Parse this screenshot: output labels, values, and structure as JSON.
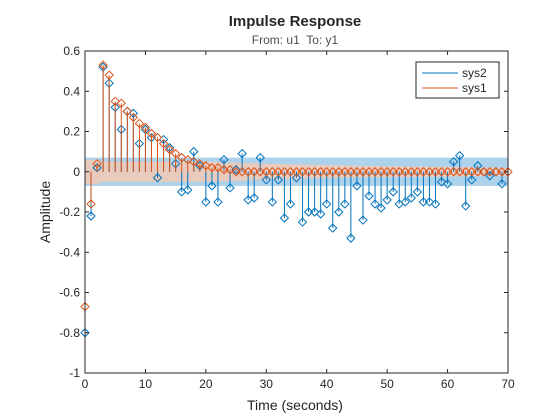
{
  "chart_data": {
    "type": "stem",
    "title": "Impulse Response",
    "subtitle": "From: u1  To: y1",
    "xlabel": "Time (seconds)",
    "ylabel": "Amplitude",
    "xlim": [
      0,
      70
    ],
    "ylim": [
      -1,
      0.6
    ],
    "xticks": [
      0,
      10,
      20,
      30,
      40,
      50,
      60,
      70
    ],
    "yticks": [
      -1,
      -0.8,
      -0.6,
      -0.4,
      -0.2,
      0,
      0.2,
      0.4,
      0.6
    ],
    "xtick_labels": [
      "0",
      "10",
      "20",
      "30",
      "40",
      "50",
      "60",
      "70"
    ],
    "ytick_labels": [
      "-1",
      "-0.8",
      "-0.6",
      "-0.4",
      "-0.2",
      "0",
      "0.2",
      "0.4",
      "0.6"
    ],
    "grid": false,
    "legend_position": "top-right",
    "series": [
      {
        "name": "sys2",
        "color": "#0072BD",
        "marker": "diamond",
        "style": "stem",
        "x": [
          0,
          1,
          2,
          3,
          4,
          5,
          6,
          7,
          8,
          9,
          10,
          11,
          12,
          13,
          14,
          15,
          16,
          17,
          18,
          19,
          20,
          21,
          22,
          23,
          24,
          25,
          26,
          27,
          28,
          29,
          30,
          31,
          32,
          33,
          34,
          35,
          36,
          37,
          38,
          39,
          40,
          41,
          42,
          43,
          44,
          45,
          46,
          47,
          48,
          49,
          50,
          51,
          52,
          53,
          54,
          55,
          56,
          57,
          58,
          59,
          60,
          61,
          62,
          63,
          64,
          65,
          66,
          67,
          68,
          69
        ],
        "y": [
          -0.8,
          -0.22,
          0.02,
          0.52,
          0.44,
          0.32,
          0.21,
          0.3,
          0.29,
          0.14,
          0.21,
          0.17,
          -0.03,
          0.16,
          0.12,
          0.04,
          -0.1,
          -0.09,
          0.1,
          0.03,
          -0.15,
          -0.07,
          -0.15,
          0.06,
          -0.08,
          0.01,
          0.09,
          -0.14,
          -0.13,
          0.07,
          -0.04,
          -0.15,
          -0.04,
          -0.23,
          -0.16,
          -0.03,
          -0.25,
          -0.2,
          -0.2,
          -0.21,
          -0.16,
          -0.28,
          -0.2,
          -0.16,
          -0.33,
          -0.07,
          -0.24,
          -0.12,
          -0.16,
          -0.18,
          -0.14,
          -0.1,
          -0.16,
          -0.15,
          -0.13,
          -0.1,
          -0.15,
          -0.15,
          -0.16,
          -0.05,
          -0.06,
          0.05,
          0.08,
          -0.17,
          -0.04,
          0.03,
          0.0,
          -0.02,
          0.0,
          -0.06
        ]
      },
      {
        "name": "sys1",
        "color": "#D95319",
        "marker": "diamond",
        "style": "stem",
        "x": [
          0,
          1,
          2,
          3,
          4,
          5,
          6,
          7,
          8,
          9,
          10,
          11,
          12,
          13,
          14,
          15,
          16,
          17,
          18,
          19,
          20,
          21,
          22,
          23,
          24,
          25,
          26,
          27,
          28,
          29,
          30,
          31,
          32,
          33,
          34,
          35,
          36,
          37,
          38,
          39,
          40,
          41,
          42,
          43,
          44,
          45,
          46,
          47,
          48,
          49,
          50,
          51,
          52,
          53,
          54,
          55,
          56,
          57,
          58,
          59,
          60,
          61,
          62,
          63,
          64,
          65,
          66,
          67,
          68,
          69,
          70
        ],
        "y": [
          -0.67,
          -0.16,
          0.04,
          0.53,
          0.48,
          0.35,
          0.34,
          0.3,
          0.27,
          0.24,
          0.22,
          0.19,
          0.17,
          0.14,
          0.11,
          0.09,
          0.07,
          0.06,
          0.05,
          0.04,
          0.03,
          0.02,
          0.02,
          0.01,
          0.01,
          0.0,
          0.0,
          0.0,
          0.0,
          0.0,
          0.0,
          0.0,
          0.0,
          0.0,
          0.0,
          0.0,
          0.0,
          0.0,
          0.0,
          0.0,
          0.0,
          0.0,
          0.0,
          0.0,
          0.0,
          0.0,
          0.0,
          0.0,
          0.0,
          0.0,
          0.0,
          0.0,
          0.0,
          0.0,
          0.0,
          0.0,
          0.0,
          0.0,
          0.0,
          0.0,
          0.0,
          0.0,
          0.0,
          0.0,
          0.0,
          0.0,
          0.0,
          0.0,
          0.0,
          0.0,
          0.0
        ]
      }
    ],
    "confidence_bands": [
      {
        "series": "sys2",
        "color": "#9ECAE9",
        "x": [
          0,
          70
        ],
        "lower": [
          -0.07,
          -0.07
        ],
        "upper": [
          0.07,
          0.07
        ]
      },
      {
        "series": "sys1",
        "color": "#F7C9B1",
        "x": [
          0,
          1,
          2,
          3,
          6,
          12,
          20,
          30,
          45,
          70
        ],
        "lower": [
          -0.06,
          -0.06,
          -0.06,
          -0.05,
          -0.05,
          -0.05,
          -0.05,
          -0.04,
          -0.03,
          -0.02
        ],
        "upper": [
          0.06,
          0.06,
          0.06,
          0.05,
          0.05,
          0.05,
          0.05,
          0.04,
          0.03,
          0.02
        ]
      }
    ]
  }
}
